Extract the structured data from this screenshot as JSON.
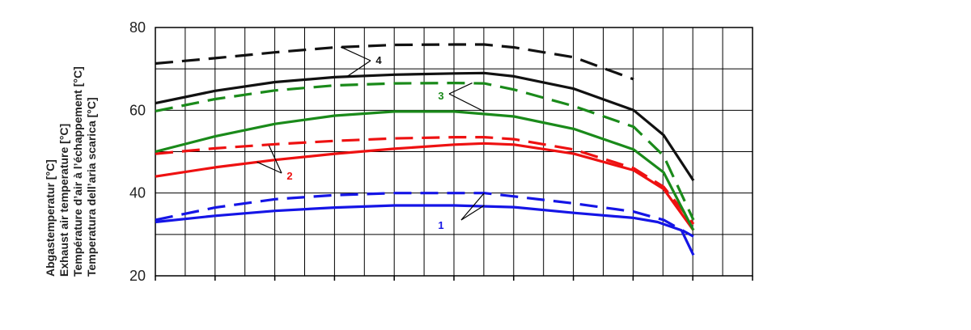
{
  "chart_data": {
    "type": "line",
    "ylabel": [
      "Abgastemperatur [°C]",
      "Exhaust air temperature [°C]",
      "Température d’air à l’échappement [°C]",
      "Temperatura dell’aria scarica [°C]"
    ],
    "ylim": [
      20,
      80
    ],
    "yticks": [
      20,
      40,
      60,
      80
    ],
    "xlim": [
      0,
      10
    ],
    "grid": true,
    "series": [
      {
        "label": "1",
        "style": "solid",
        "color": "#1515e6",
        "x": [
          0,
          1,
          2,
          3,
          4,
          5,
          6,
          7,
          8,
          8.4,
          8.8,
          9
        ],
        "y": [
          33,
          34.5,
          35.7,
          36.5,
          37,
          37,
          36.6,
          35.2,
          34,
          33,
          31,
          25
        ]
      },
      {
        "label": "1",
        "style": "dashed",
        "color": "#1515e6",
        "x": [
          0,
          1,
          2,
          3,
          4,
          5,
          5.5,
          6,
          7,
          8,
          8.5,
          9
        ],
        "y": [
          33.5,
          36.5,
          38.5,
          39.5,
          40,
          40,
          40,
          39.2,
          37.5,
          35.5,
          33.5,
          29.5
        ]
      },
      {
        "label": "2",
        "style": "solid",
        "color": "#ee1111",
        "x": [
          0,
          1,
          2,
          3,
          4,
          5,
          5.5,
          6,
          7,
          8,
          8.5,
          9
        ],
        "y": [
          44,
          46.2,
          48,
          49.5,
          50.7,
          51.7,
          52,
          51.7,
          49.5,
          45.5,
          41,
          31
        ]
      },
      {
        "label": "2",
        "style": "dashed",
        "color": "#ee1111",
        "x": [
          0,
          1,
          2,
          3,
          4,
          5,
          5.5,
          6,
          7,
          8,
          8.5,
          9
        ],
        "y": [
          49.5,
          50.8,
          51.8,
          52.6,
          53.2,
          53.5,
          53.5,
          53,
          50.5,
          46,
          41.5,
          32.5
        ]
      },
      {
        "label": "3",
        "style": "solid",
        "color": "#1a8a1a",
        "x": [
          0,
          1,
          2,
          3,
          4,
          5,
          6,
          7,
          8,
          8.5,
          9
        ],
        "y": [
          50,
          53.7,
          56.7,
          58.7,
          59.7,
          59.7,
          58.5,
          55.5,
          50.5,
          45,
          31
        ]
      },
      {
        "label": "3",
        "style": "dashed",
        "color": "#1a8a1a",
        "x": [
          0,
          1,
          2,
          3,
          4,
          5,
          5.5,
          6,
          7,
          8,
          8.5,
          9
        ],
        "y": [
          59.8,
          62.7,
          64.8,
          66,
          66.5,
          66.6,
          66.5,
          65,
          61,
          56,
          49,
          33.5
        ]
      },
      {
        "label": "4",
        "style": "solid",
        "color": "#111111",
        "x": [
          0,
          1,
          2,
          3,
          4,
          5,
          5.5,
          6,
          7,
          8,
          8.5,
          9
        ],
        "y": [
          61.7,
          64.7,
          66.8,
          68,
          68.6,
          68.9,
          69,
          68.2,
          65.2,
          60,
          54,
          43
        ]
      },
      {
        "label": "4",
        "style": "dashed",
        "color": "#111111",
        "x": [
          0,
          1,
          2,
          3,
          4,
          5,
          5.5,
          6,
          7,
          8
        ],
        "y": [
          71.3,
          72.6,
          74,
          75.2,
          75.8,
          75.9,
          75.9,
          75.2,
          72.8,
          67.5
        ]
      }
    ],
    "annotations": [
      {
        "text": "1",
        "color": "#1515e6"
      },
      {
        "text": "2",
        "color": "#ee1111"
      },
      {
        "text": "3",
        "color": "#1a8a1a"
      },
      {
        "text": "4",
        "color": "#111111"
      }
    ]
  }
}
